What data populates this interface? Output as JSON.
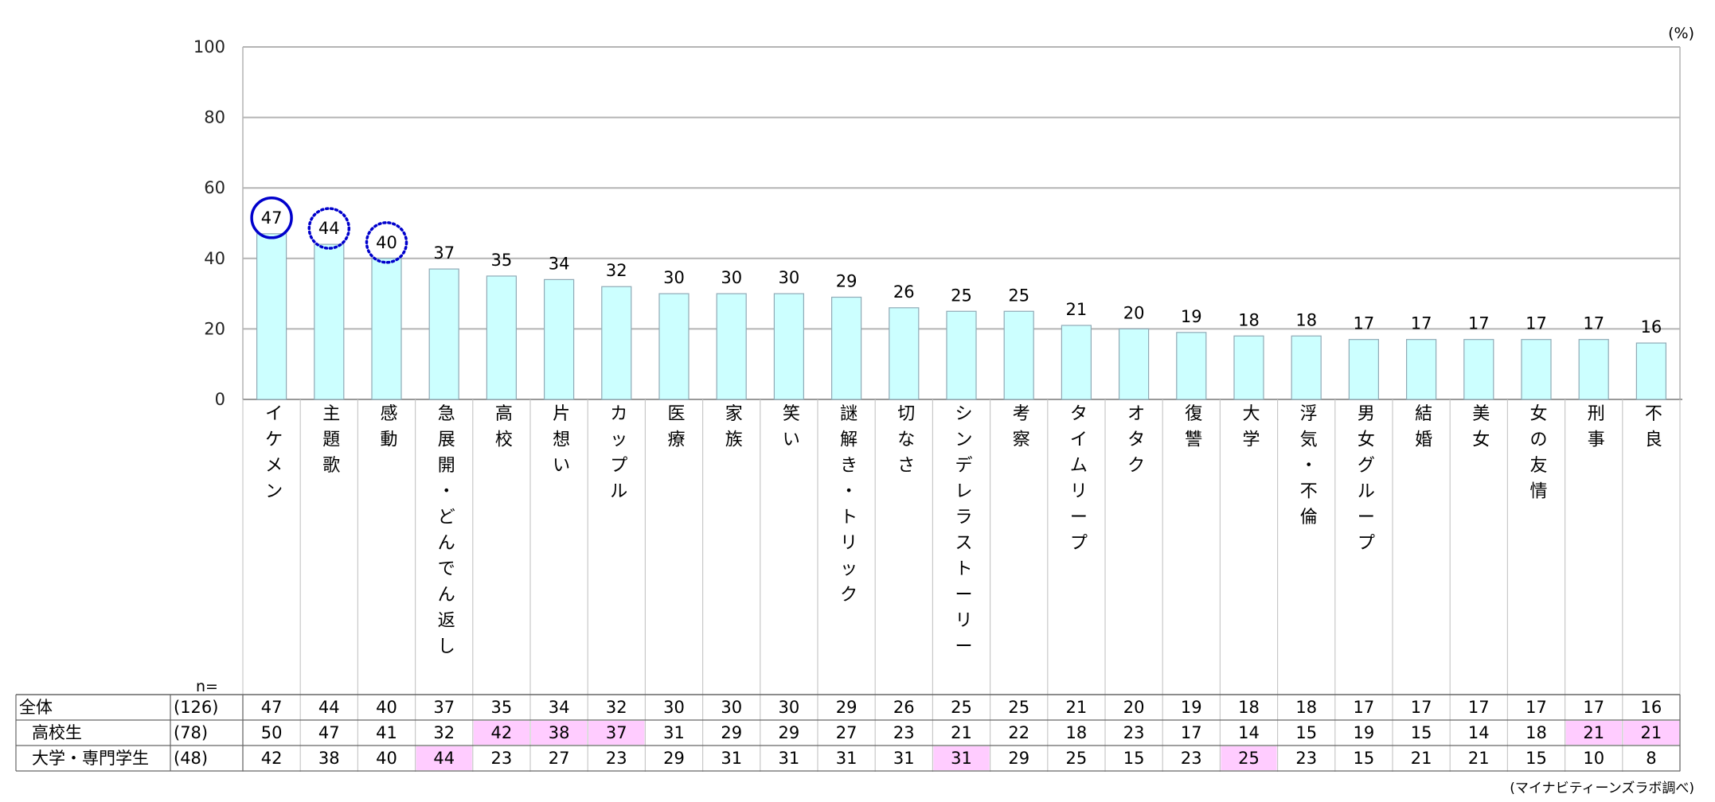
{
  "chart_data": {
    "type": "bar",
    "unit_label": "(%)",
    "ylim": [
      0,
      100
    ],
    "yticks": [
      0,
      20,
      40,
      60,
      80,
      100
    ],
    "grid": true,
    "colors": {
      "bar_fill": "#ccffff",
      "bar_stroke": "#8fa9b5",
      "grid": "#b4b4b4",
      "highlight_cell": "#ffccff",
      "circle": "#0000cc"
    },
    "categories": [
      "イケメン",
      "主題歌",
      "感動",
      "急展開・どんでん返し",
      "高校",
      "片想い",
      "カップル",
      "医療",
      "家族",
      "笑い",
      "謎解き・トリック",
      "切なさ",
      "シンデレラストーリー",
      "考察",
      "タイムリープ",
      "オタク",
      "復讐",
      "大学",
      "浮気・不倫",
      "男女グループ",
      "結婚",
      "美女",
      "女の友情",
      "刑事",
      "不良"
    ],
    "values": [
      47,
      44,
      40,
      37,
      35,
      34,
      32,
      30,
      30,
      30,
      29,
      26,
      25,
      25,
      21,
      20,
      19,
      18,
      18,
      17,
      17,
      17,
      17,
      17,
      16
    ],
    "circled": [
      {
        "index": 0,
        "style": "solid"
      },
      {
        "index": 1,
        "style": "dotted"
      },
      {
        "index": 2,
        "style": "dotted"
      }
    ],
    "table": {
      "n_label": "n=",
      "rows": [
        {
          "label": "全体",
          "n": "(126)",
          "values": [
            47,
            44,
            40,
            37,
            35,
            34,
            32,
            30,
            30,
            30,
            29,
            26,
            25,
            25,
            21,
            20,
            19,
            18,
            18,
            17,
            17,
            17,
            17,
            17,
            16
          ],
          "highlight": []
        },
        {
          "label": "高校生",
          "n": "(78)",
          "values": [
            50,
            47,
            41,
            32,
            42,
            38,
            37,
            31,
            29,
            29,
            27,
            23,
            21,
            22,
            18,
            23,
            17,
            14,
            15,
            19,
            15,
            14,
            18,
            21,
            21
          ],
          "highlight": [
            4,
            5,
            6,
            23,
            24
          ]
        },
        {
          "label": "大学・専門学生",
          "n": "(48)",
          "values": [
            42,
            38,
            40,
            44,
            23,
            27,
            23,
            29,
            31,
            31,
            31,
            31,
            31,
            29,
            25,
            15,
            23,
            25,
            23,
            15,
            21,
            21,
            15,
            10,
            8
          ],
          "highlight": [
            3,
            12,
            17
          ]
        }
      ]
    },
    "source": "(マイナビティーンズラボ調べ)"
  }
}
